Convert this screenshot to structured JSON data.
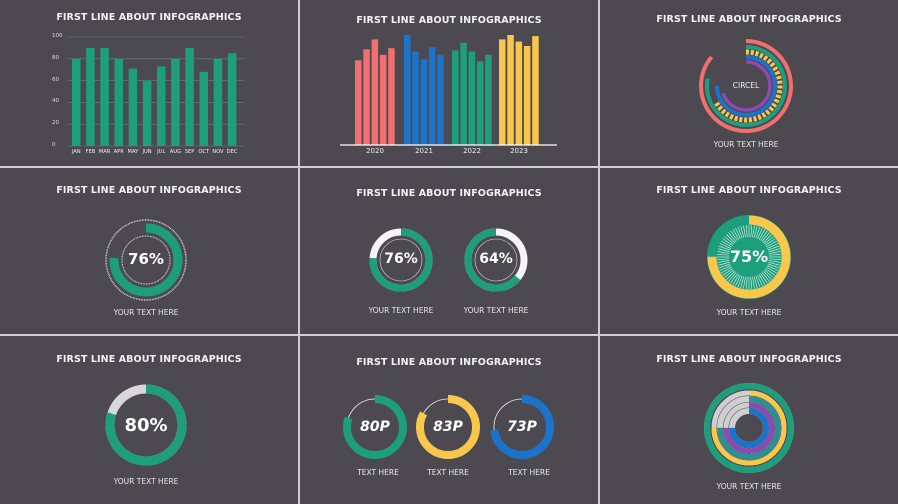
{
  "title": "FIRST LINE ABOUT INFOGRAPHICS",
  "caption": "YOUR TEXT HERE",
  "short_caption": "TEXT HERE",
  "colors": {
    "green": "#1d9e7c",
    "coral": "#f36e6e",
    "blue": "#1b74c9",
    "yellow": "#f8c74c",
    "purple": "#8f49b3",
    "teal": "#2e8f93",
    "gray": "#cfcfcf",
    "white": "#f4f4f4",
    "background": "#4c4a50"
  },
  "chart_data": [
    {
      "type": "bar",
      "categories": [
        "JAN",
        "FEB",
        "MAR",
        "APR",
        "MAY",
        "JUN",
        "JUL",
        "AUG",
        "SEP",
        "OCT",
        "NOV",
        "DEC"
      ],
      "values": [
        80,
        90,
        90,
        80,
        71,
        60,
        73,
        80,
        90,
        68,
        80,
        85
      ],
      "yticks": [
        "0",
        "20",
        "40",
        "60",
        "80",
        "100"
      ],
      "ylim": [
        0,
        100
      ],
      "grid": true,
      "color": "#1d9e7c"
    },
    {
      "type": "bar",
      "categories": [
        "2020",
        "2021",
        "2022",
        "2023"
      ],
      "series_colors": [
        "#f36e6e",
        "#1b74c9",
        "#1d9e7c",
        "#f8c74c"
      ],
      "values": [
        [
          77,
          87,
          96,
          82,
          88
        ],
        [
          100,
          85,
          78,
          89,
          82
        ],
        [
          86,
          93,
          85,
          76,
          82
        ],
        [
          96,
          100,
          94,
          90,
          99
        ]
      ]
    }
  ],
  "panels": {
    "p3": {
      "label": "CIRCEL",
      "ring_levels": [
        0.86,
        0.78,
        0.72,
        0.75,
        0.7
      ]
    },
    "p4": {
      "value": "76%",
      "level": 0.76
    },
    "p5": [
      {
        "value": "76%",
        "level": 0.76
      },
      {
        "value": "64%",
        "level": 0.64
      }
    ],
    "p6": {
      "value": "75%",
      "level": 0.75
    },
    "p7": {
      "value": "80%",
      "level": 0.8
    },
    "p8": [
      {
        "value": "80P",
        "level": 0.8,
        "color": "#1d9e7c"
      },
      {
        "value": "83P",
        "level": 0.83,
        "color": "#f8c74c"
      },
      {
        "value": "73P",
        "level": 0.73,
        "color": "#1b74c9"
      }
    ],
    "p9": {
      "ring_levels": [
        1.0,
        0.75,
        0.75,
        0.75,
        0.75
      ]
    }
  }
}
